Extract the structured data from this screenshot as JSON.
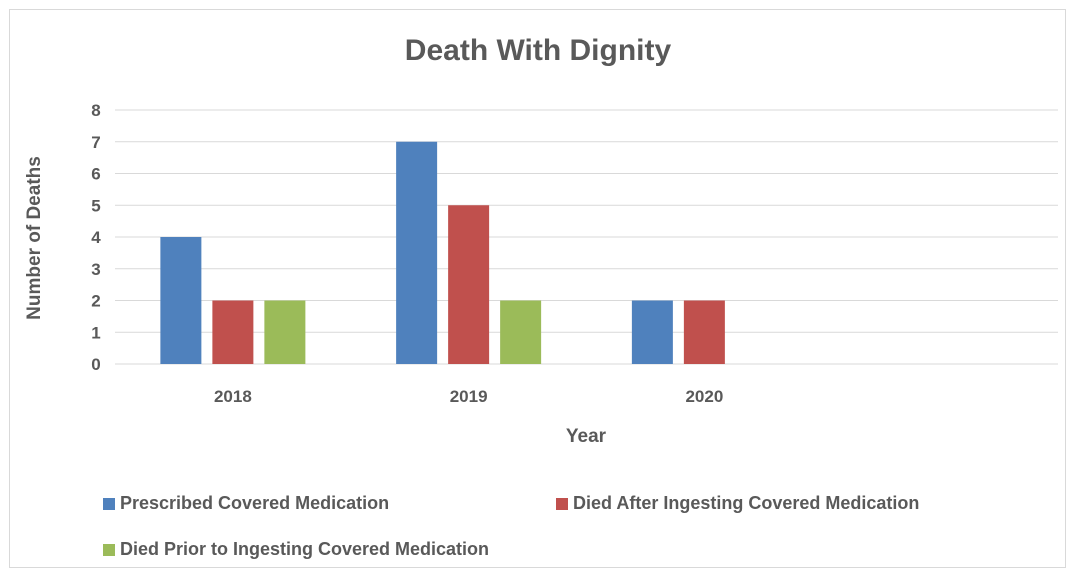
{
  "chart_data": {
    "type": "bar",
    "title": "Death With Dignity",
    "xlabel": "Year",
    "ylabel": "Number of Deaths",
    "categories": [
      "2018",
      "2019",
      "2020"
    ],
    "ylim": [
      0,
      8
    ],
    "yticks": [
      "0",
      "1",
      "2",
      "3",
      "4",
      "5",
      "6",
      "7",
      "8"
    ],
    "grid": true,
    "legend_position": "bottom",
    "series": [
      {
        "name": "Prescribed Covered Medication",
        "color": "#4f81bd",
        "values": [
          4,
          7,
          2
        ]
      },
      {
        "name": "Died After Ingesting Covered Medication",
        "color": "#c0504d",
        "values": [
          2,
          5,
          2
        ]
      },
      {
        "name": "Died Prior to Ingesting Covered Medication",
        "color": "#9bbb59",
        "values": [
          2,
          2,
          null
        ]
      }
    ]
  }
}
